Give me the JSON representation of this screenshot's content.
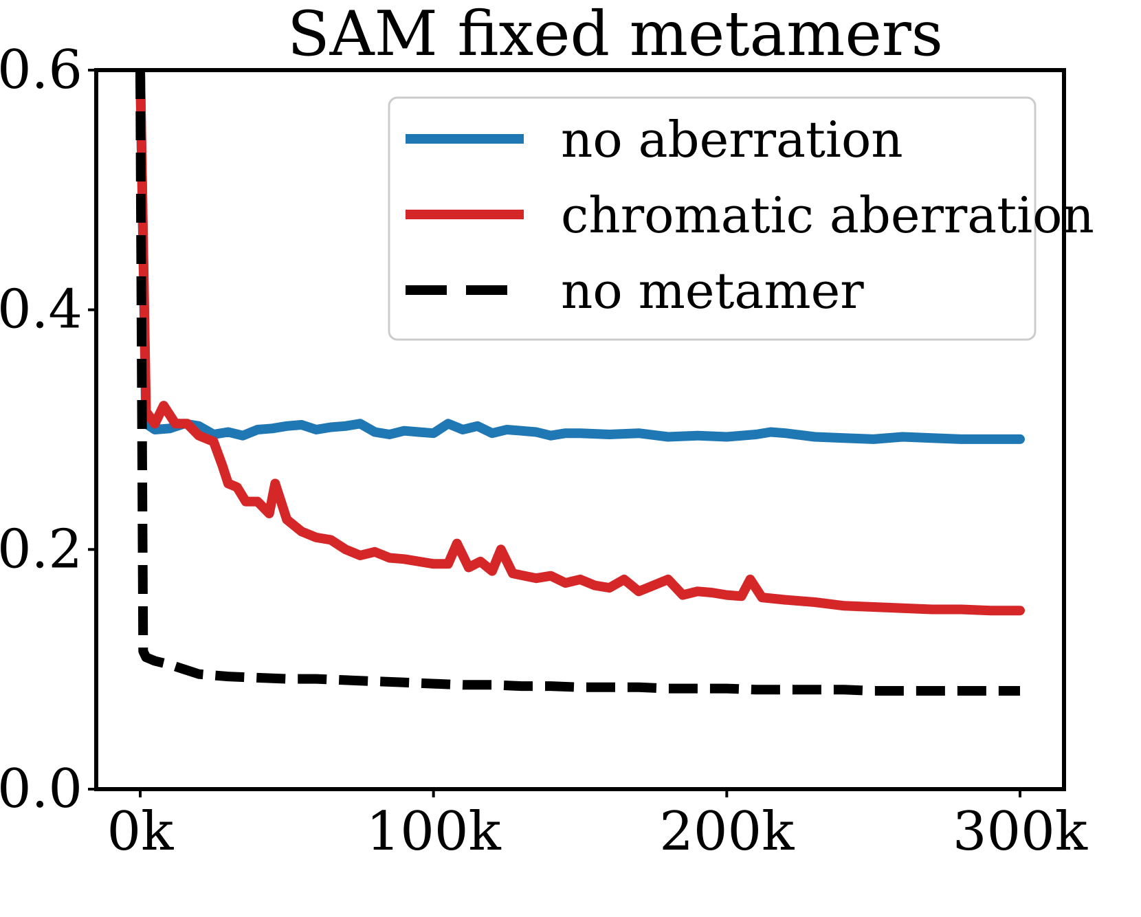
{
  "chart_data": {
    "type": "line",
    "title": "SAM fixed metamers",
    "xlabel": "",
    "ylabel": "",
    "xlim": [
      -15000,
      315000
    ],
    "ylim": [
      0.0,
      0.6
    ],
    "xticks": [
      {
        "value": 0,
        "label": "0k"
      },
      {
        "value": 100000,
        "label": "100k"
      },
      {
        "value": 200000,
        "label": "200k"
      },
      {
        "value": 300000,
        "label": "300k"
      }
    ],
    "yticks": [
      {
        "value": 0.0,
        "label": "0.0"
      },
      {
        "value": 0.2,
        "label": "0.2"
      },
      {
        "value": 0.4,
        "label": "0.4"
      },
      {
        "value": 0.6,
        "label": "0.6"
      }
    ],
    "grid": false,
    "legend_position": "top-right",
    "series": [
      {
        "name": "no aberration",
        "color": "#1f77b4",
        "style": "solid",
        "x": [
          0,
          2000,
          5000,
          10000,
          15000,
          20000,
          25000,
          30000,
          35000,
          40000,
          45000,
          50000,
          55000,
          60000,
          65000,
          70000,
          75000,
          80000,
          85000,
          90000,
          95000,
          100000,
          105000,
          110000,
          115000,
          120000,
          125000,
          130000,
          135000,
          140000,
          145000,
          150000,
          160000,
          170000,
          180000,
          190000,
          200000,
          210000,
          215000,
          220000,
          230000,
          240000,
          250000,
          260000,
          270000,
          280000,
          290000,
          300000
        ],
        "y": [
          0.6,
          0.305,
          0.3,
          0.301,
          0.305,
          0.303,
          0.296,
          0.298,
          0.295,
          0.3,
          0.301,
          0.303,
          0.304,
          0.3,
          0.302,
          0.303,
          0.305,
          0.298,
          0.296,
          0.299,
          0.298,
          0.297,
          0.305,
          0.3,
          0.303,
          0.297,
          0.3,
          0.299,
          0.298,
          0.295,
          0.297,
          0.297,
          0.296,
          0.297,
          0.294,
          0.295,
          0.294,
          0.296,
          0.298,
          0.297,
          0.294,
          0.293,
          0.292,
          0.294,
          0.293,
          0.292,
          0.292,
          0.292
        ]
      },
      {
        "name": "chromatic aberration",
        "color": "#d62728",
        "style": "solid",
        "x": [
          0,
          2000,
          5000,
          8000,
          12000,
          16000,
          20000,
          25000,
          28000,
          30000,
          33000,
          36000,
          40000,
          44000,
          46000,
          50000,
          55000,
          60000,
          65000,
          70000,
          75000,
          80000,
          85000,
          90000,
          95000,
          100000,
          105000,
          108000,
          112000,
          116000,
          120000,
          123000,
          127000,
          131000,
          135000,
          140000,
          145000,
          150000,
          155000,
          160000,
          165000,
          170000,
          175000,
          180000,
          185000,
          190000,
          195000,
          200000,
          205000,
          208000,
          212000,
          220000,
          230000,
          240000,
          250000,
          260000,
          270000,
          280000,
          290000,
          300000
        ],
        "y": [
          0.6,
          0.315,
          0.305,
          0.32,
          0.305,
          0.305,
          0.295,
          0.29,
          0.27,
          0.255,
          0.252,
          0.24,
          0.24,
          0.23,
          0.255,
          0.225,
          0.215,
          0.21,
          0.208,
          0.2,
          0.195,
          0.198,
          0.193,
          0.192,
          0.19,
          0.188,
          0.188,
          0.205,
          0.185,
          0.19,
          0.182,
          0.2,
          0.18,
          0.178,
          0.176,
          0.178,
          0.172,
          0.175,
          0.17,
          0.168,
          0.175,
          0.165,
          0.17,
          0.175,
          0.162,
          0.165,
          0.164,
          0.162,
          0.161,
          0.175,
          0.16,
          0.158,
          0.156,
          0.153,
          0.152,
          0.151,
          0.15,
          0.15,
          0.149,
          0.149
        ]
      },
      {
        "name": "no metamer",
        "color": "#000000",
        "style": "dashed",
        "x": [
          0,
          1000,
          2000,
          5000,
          10000,
          15000,
          20000,
          25000,
          30000,
          40000,
          50000,
          60000,
          70000,
          80000,
          90000,
          100000,
          110000,
          120000,
          130000,
          140000,
          150000,
          160000,
          170000,
          180000,
          190000,
          200000,
          210000,
          220000,
          230000,
          240000,
          250000,
          260000,
          270000,
          280000,
          290000,
          300000
        ],
        "y": [
          0.6,
          0.115,
          0.11,
          0.107,
          0.104,
          0.1,
          0.096,
          0.095,
          0.094,
          0.093,
          0.092,
          0.092,
          0.091,
          0.09,
          0.089,
          0.088,
          0.087,
          0.087,
          0.086,
          0.086,
          0.085,
          0.085,
          0.085,
          0.084,
          0.084,
          0.084,
          0.083,
          0.083,
          0.083,
          0.083,
          0.082,
          0.082,
          0.082,
          0.082,
          0.082,
          0.082
        ]
      }
    ]
  }
}
